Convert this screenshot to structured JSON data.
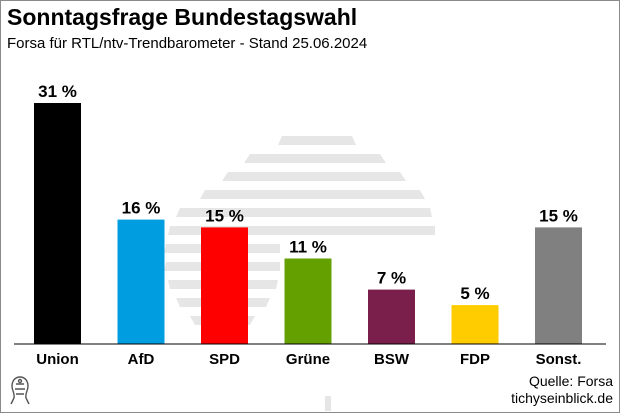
{
  "header": {
    "title": "Sonntagsfrage Bundestagswahl",
    "subtitle": "Forsa für RTL/ntv-Trendbarometer - Stand 25.06.2024"
  },
  "footer": {
    "source": "Quelle: Forsa",
    "site": "tichyseinblick.de"
  },
  "chart_data": {
    "type": "bar",
    "title": "Sonntagsfrage Bundestagswahl",
    "subtitle": "Forsa für RTL/ntv-Trendbarometer - Stand 25.06.2024",
    "categories": [
      "Union",
      "AfD",
      "SPD",
      "Grüne",
      "BSW",
      "FDP",
      "Sonst."
    ],
    "values": [
      31,
      16,
      15,
      11,
      7,
      5,
      15
    ],
    "value_labels": [
      "31 %",
      "16 %",
      "15 %",
      "11 %",
      "7 %",
      "5 %",
      "15 %"
    ],
    "colors": [
      "#000000",
      "#009ee0",
      "#ff0000",
      "#64a000",
      "#7a1f4b",
      "#ffcc00",
      "#808080"
    ],
    "ylim": [
      0,
      31
    ],
    "xlabel": "",
    "ylabel": "",
    "grid": false,
    "legend": "none"
  }
}
